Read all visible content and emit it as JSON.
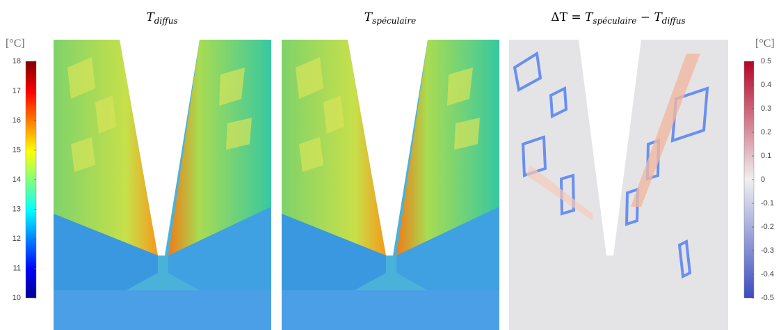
{
  "panels": [
    {
      "title": [
        {
          "text": "T"
        },
        {
          "text": "diffus",
          "sub": true
        }
      ]
    },
    {
      "title": [
        {
          "text": "T"
        },
        {
          "text": "spéculaire",
          "sub": true
        }
      ]
    },
    {
      "title": [
        {
          "text": "ΔT = "
        },
        {
          "text": "T"
        },
        {
          "text": "spéculaire",
          "sub": true
        },
        {
          "text": " − "
        },
        {
          "text": "T"
        },
        {
          "text": "diffus",
          "sub": true
        }
      ]
    }
  ],
  "colorbars": [
    {
      "unit": "[°C]",
      "lim": [
        10,
        18
      ],
      "ticks": [
        10,
        11,
        12,
        13,
        14,
        15,
        16,
        17,
        18
      ]
    },
    {
      "unit": "[°C]",
      "lim": [
        -0.5,
        0.5
      ],
      "ticks": [
        -0.5,
        -0.4,
        -0.3,
        -0.2,
        -0.1,
        0,
        0.1,
        0.2,
        0.3,
        0.4,
        0.5
      ]
    }
  ]
}
